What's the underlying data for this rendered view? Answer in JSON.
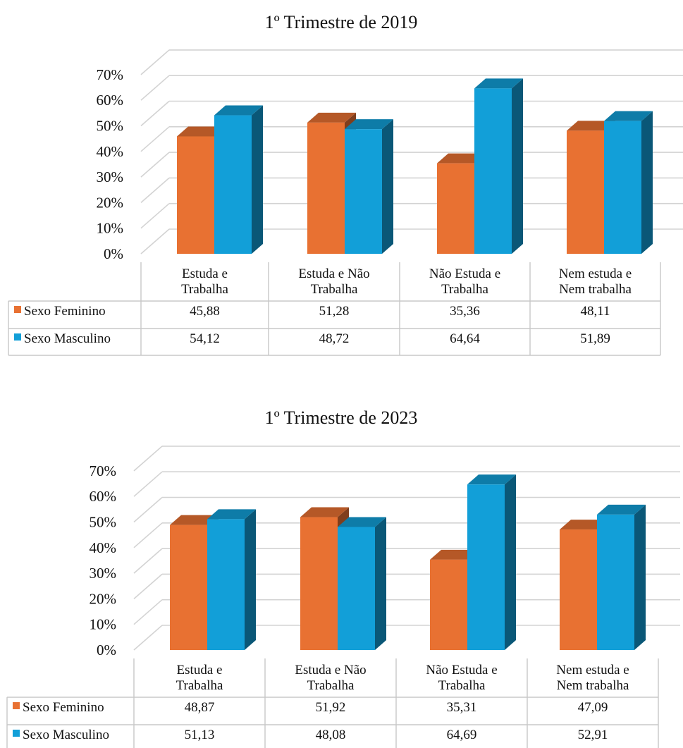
{
  "colors": {
    "Sexo Feminino": "#E87132",
    "Sexo Masculino": "#129FD8"
  },
  "chart_data": [
    {
      "type": "bar",
      "title": "1º Trimestre de 2019",
      "categories": [
        "Estuda e Trabalha",
        "Estuda e Não Trabalha",
        "Não Estuda e Trabalha",
        "Nem estuda e Nem trabalha"
      ],
      "category_lines": [
        [
          "Estuda e",
          "Trabalha"
        ],
        [
          "Estuda e Não",
          "Trabalha"
        ],
        [
          "Não Estuda e",
          "Trabalha"
        ],
        [
          "Nem estuda e",
          "Nem trabalha"
        ]
      ],
      "series": [
        {
          "name": "Sexo Feminino",
          "values": [
            45.88,
            51.28,
            35.36,
            48.11
          ],
          "labels": [
            "45,88",
            "51,28",
            "35,36",
            "48,11"
          ]
        },
        {
          "name": "Sexo Masculino",
          "values": [
            54.12,
            48.72,
            64.64,
            51.89
          ],
          "labels": [
            "54,12",
            "48,72",
            "64,64",
            "51,89"
          ]
        }
      ],
      "yticks": [
        "0%",
        "10%",
        "20%",
        "30%",
        "40%",
        "50%",
        "60%",
        "70%"
      ],
      "ylim": [
        0,
        70
      ],
      "grid": true,
      "legend": "data-table"
    },
    {
      "type": "bar",
      "title": "1º Trimestre de 2023",
      "categories": [
        "Estuda e Trabalha",
        "Estuda e Não Trabalha",
        "Não Estuda e Trabalha",
        "Nem estuda e Nem trabalha"
      ],
      "category_lines": [
        [
          "Estuda e",
          "Trabalha"
        ],
        [
          "Estuda e Não",
          "Trabalha"
        ],
        [
          "Não Estuda e",
          "Trabalha"
        ],
        [
          "Nem estuda e",
          "Nem trabalha"
        ]
      ],
      "series": [
        {
          "name": "Sexo Feminino",
          "values": [
            48.87,
            51.92,
            35.31,
            47.09
          ],
          "labels": [
            "48,87",
            "51,92",
            "35,31",
            "47,09"
          ]
        },
        {
          "name": "Sexo Masculino",
          "values": [
            51.13,
            48.08,
            64.69,
            52.91
          ],
          "labels": [
            "51,13",
            "48,08",
            "64,69",
            "52,91"
          ]
        }
      ],
      "yticks": [
        "0%",
        "10%",
        "20%",
        "30%",
        "40%",
        "50%",
        "60%",
        "70%"
      ],
      "ylim": [
        0,
        70
      ],
      "grid": true,
      "legend": "data-table"
    }
  ]
}
